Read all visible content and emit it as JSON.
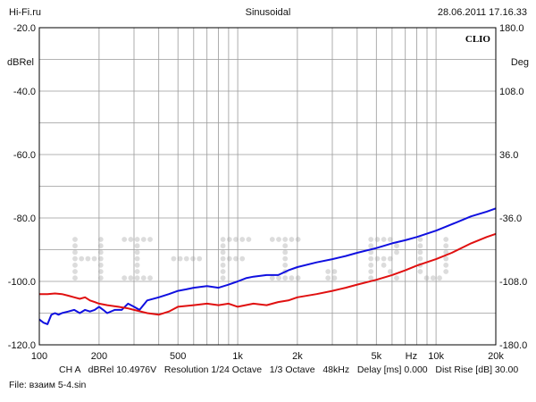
{
  "header": {
    "left": "Hi-Fi.ru",
    "center": "Sinusoidal",
    "right": "28.06.2011 17.16.33"
  },
  "brand": "CLIO",
  "watermark": "HI-FI.RU",
  "footer": {
    "settings": "CH A   dBRel 10.4976V   Resolution 1/24 Octave   1/3 Octave   48kHz   Delay [ms] 0.000   Dist Rise [dB] 30.00",
    "file": "File: взаим 5-4.sin"
  },
  "chart_data": {
    "type": "line",
    "title": "Sinusoidal",
    "xlabel": "Hz",
    "ylabel": "dBRel",
    "y2label": "Deg",
    "x_scale": "log",
    "xlim": [
      100,
      20000
    ],
    "ylim": [
      -120,
      -20
    ],
    "y2lim": [
      -180,
      180
    ],
    "grid": true,
    "x_ticks": [
      {
        "value": 100,
        "label": "100"
      },
      {
        "value": 200,
        "label": "200"
      },
      {
        "value": 500,
        "label": "500"
      },
      {
        "value": 1000,
        "label": "1k"
      },
      {
        "value": 2000,
        "label": "2k"
      },
      {
        "value": 5000,
        "label": "5k"
      },
      {
        "value": 7500,
        "label": "Hz"
      },
      {
        "value": 10000,
        "label": "10k"
      },
      {
        "value": 20000,
        "label": "20k"
      }
    ],
    "y_ticks": [
      {
        "value": -20,
        "label": "-20.0"
      },
      {
        "value": -40,
        "label": "-40.0"
      },
      {
        "value": -60,
        "label": "-60.0"
      },
      {
        "value": -80,
        "label": "-80.0"
      },
      {
        "value": -100,
        "label": "-100.0"
      },
      {
        "value": -120,
        "label": "-120.0"
      }
    ],
    "y2_ticks": [
      {
        "value": 180,
        "label": "180.0"
      },
      {
        "value": 108,
        "label": "108.0"
      },
      {
        "value": 36,
        "label": "36.0"
      },
      {
        "value": -36,
        "label": "-36.0"
      },
      {
        "value": -108,
        "label": "-108.0"
      },
      {
        "value": -180,
        "label": "-180.0"
      }
    ],
    "series": [
      {
        "color": "#1010e0",
        "points": [
          [
            100,
            -112
          ],
          [
            105,
            -113
          ],
          [
            110,
            -113.5
          ],
          [
            115,
            -110.5
          ],
          [
            120,
            -110
          ],
          [
            125,
            -110.5
          ],
          [
            130,
            -110
          ],
          [
            140,
            -109.5
          ],
          [
            150,
            -109
          ],
          [
            160,
            -110
          ],
          [
            170,
            -109
          ],
          [
            180,
            -109.5
          ],
          [
            190,
            -109
          ],
          [
            200,
            -108
          ],
          [
            210,
            -109
          ],
          [
            220,
            -110
          ],
          [
            240,
            -109
          ],
          [
            260,
            -109
          ],
          [
            280,
            -107
          ],
          [
            300,
            -108
          ],
          [
            320,
            -109
          ],
          [
            350,
            -106
          ],
          [
            400,
            -105
          ],
          [
            450,
            -104
          ],
          [
            500,
            -103
          ],
          [
            550,
            -102.5
          ],
          [
            600,
            -102
          ],
          [
            700,
            -101.5
          ],
          [
            800,
            -102
          ],
          [
            900,
            -101
          ],
          [
            1000,
            -100
          ],
          [
            1100,
            -99
          ],
          [
            1200,
            -98.5
          ],
          [
            1400,
            -98
          ],
          [
            1600,
            -98
          ],
          [
            1800,
            -96.5
          ],
          [
            2000,
            -95.5
          ],
          [
            2500,
            -94
          ],
          [
            3000,
            -93
          ],
          [
            3500,
            -92
          ],
          [
            4000,
            -91
          ],
          [
            5000,
            -89.5
          ],
          [
            6000,
            -88
          ],
          [
            7000,
            -87
          ],
          [
            8000,
            -86
          ],
          [
            10000,
            -84
          ],
          [
            12000,
            -82
          ],
          [
            15000,
            -79.5
          ],
          [
            18000,
            -78
          ],
          [
            20000,
            -77
          ]
        ]
      },
      {
        "color": "#e01010",
        "points": [
          [
            100,
            -104
          ],
          [
            110,
            -104
          ],
          [
            120,
            -103.8
          ],
          [
            130,
            -104
          ],
          [
            140,
            -104.5
          ],
          [
            150,
            -105
          ],
          [
            160,
            -105.5
          ],
          [
            170,
            -105
          ],
          [
            180,
            -106
          ],
          [
            190,
            -106.5
          ],
          [
            200,
            -107
          ],
          [
            220,
            -107.5
          ],
          [
            250,
            -108
          ],
          [
            280,
            -108.5
          ],
          [
            300,
            -109
          ],
          [
            350,
            -110
          ],
          [
            400,
            -110.5
          ],
          [
            450,
            -109.5
          ],
          [
            500,
            -108
          ],
          [
            600,
            -107.5
          ],
          [
            700,
            -107
          ],
          [
            800,
            -107.5
          ],
          [
            900,
            -107
          ],
          [
            1000,
            -108
          ],
          [
            1200,
            -107
          ],
          [
            1400,
            -107.5
          ],
          [
            1600,
            -106.5
          ],
          [
            1800,
            -106
          ],
          [
            2000,
            -105
          ],
          [
            2500,
            -104
          ],
          [
            3000,
            -103
          ],
          [
            3500,
            -102
          ],
          [
            4000,
            -101
          ],
          [
            5000,
            -99.5
          ],
          [
            6000,
            -98
          ],
          [
            7000,
            -96.5
          ],
          [
            8000,
            -95
          ],
          [
            10000,
            -93
          ],
          [
            12000,
            -91
          ],
          [
            15000,
            -88
          ],
          [
            18000,
            -86
          ],
          [
            20000,
            -85
          ]
        ]
      }
    ]
  }
}
